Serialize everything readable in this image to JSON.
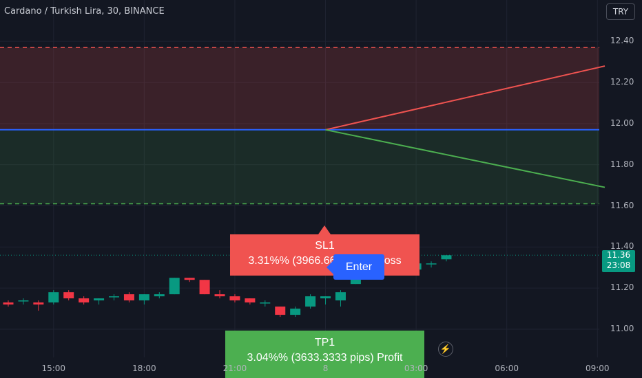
{
  "header": {
    "title": "Cardano / Turkish Lira, 30, BINANCE",
    "currency": "TRY"
  },
  "chart_data": {
    "type": "candlestick",
    "symbol": "Cardano / Turkish Lira",
    "interval": "30",
    "exchange": "BINANCE",
    "ylim": [
      10.9,
      12.5
    ],
    "y_ticks": [
      {
        "value": 11.0,
        "label": "11.00"
      },
      {
        "value": 11.2,
        "label": "11.20"
      },
      {
        "value": 11.4,
        "label": "11.40"
      },
      {
        "value": 11.6,
        "label": "11.60"
      },
      {
        "value": 11.8,
        "label": "11.80"
      },
      {
        "value": 12.0,
        "label": "12.00"
      },
      {
        "value": 12.2,
        "label": "12.20"
      },
      {
        "value": 12.4,
        "label": "12.40"
      }
    ],
    "x_ticks": [
      {
        "index": 3,
        "label": "15:00"
      },
      {
        "index": 9,
        "label": "18:00"
      },
      {
        "index": 15,
        "label": "21:00"
      },
      {
        "index": 21,
        "label": "8"
      },
      {
        "index": 27,
        "label": "03:00"
      },
      {
        "index": 33,
        "label": "06:00"
      },
      {
        "index": 39,
        "label": "09:00"
      }
    ],
    "candles": [
      {
        "o": 11.13,
        "h": 11.14,
        "l": 11.11,
        "c": 11.12
      },
      {
        "o": 11.14,
        "h": 11.15,
        "l": 11.12,
        "c": 11.14
      },
      {
        "o": 11.13,
        "h": 11.14,
        "l": 11.09,
        "c": 11.12
      },
      {
        "o": 11.13,
        "h": 11.19,
        "l": 11.12,
        "c": 11.18
      },
      {
        "o": 11.18,
        "h": 11.19,
        "l": 11.14,
        "c": 11.15
      },
      {
        "o": 11.15,
        "h": 11.16,
        "l": 11.12,
        "c": 11.13
      },
      {
        "o": 11.14,
        "h": 11.15,
        "l": 11.12,
        "c": 11.15
      },
      {
        "o": 11.16,
        "h": 11.17,
        "l": 11.14,
        "c": 11.16
      },
      {
        "o": 11.17,
        "h": 11.18,
        "l": 11.13,
        "c": 11.14
      },
      {
        "o": 11.14,
        "h": 11.17,
        "l": 11.12,
        "c": 11.17
      },
      {
        "o": 11.16,
        "h": 11.18,
        "l": 11.15,
        "c": 11.17
      },
      {
        "o": 11.17,
        "h": 11.25,
        "l": 11.17,
        "c": 11.25
      },
      {
        "o": 11.25,
        "h": 11.25,
        "l": 11.23,
        "c": 11.24
      },
      {
        "o": 11.24,
        "h": 11.24,
        "l": 11.17,
        "c": 11.17
      },
      {
        "o": 11.17,
        "h": 11.19,
        "l": 11.15,
        "c": 11.16
      },
      {
        "o": 11.16,
        "h": 11.17,
        "l": 11.13,
        "c": 11.14
      },
      {
        "o": 11.15,
        "h": 11.15,
        "l": 11.12,
        "c": 11.13
      },
      {
        "o": 11.13,
        "h": 11.14,
        "l": 11.11,
        "c": 11.13
      },
      {
        "o": 11.11,
        "h": 11.11,
        "l": 11.06,
        "c": 11.07
      },
      {
        "o": 11.07,
        "h": 11.11,
        "l": 11.06,
        "c": 11.1
      },
      {
        "o": 11.11,
        "h": 11.17,
        "l": 11.1,
        "c": 11.16
      },
      {
        "o": 11.15,
        "h": 11.16,
        "l": 11.12,
        "c": 11.16
      },
      {
        "o": 11.14,
        "h": 11.19,
        "l": 11.11,
        "c": 11.18
      },
      {
        "o": 11.22,
        "h": 11.26,
        "l": 11.22,
        "c": 11.26
      },
      {
        "o": 11.3,
        "h": 11.3,
        "l": 11.28,
        "c": 11.29
      },
      {
        "o": 11.3,
        "h": 11.31,
        "l": 11.28,
        "c": 11.3
      },
      {
        "o": 11.3,
        "h": 11.31,
        "l": 11.28,
        "c": 11.3
      },
      {
        "o": 11.29,
        "h": 11.33,
        "l": 11.28,
        "c": 11.32
      },
      {
        "o": 11.32,
        "h": 11.33,
        "l": 11.3,
        "c": 11.32
      },
      {
        "o": 11.34,
        "h": 11.36,
        "l": 11.33,
        "c": 11.36
      }
    ],
    "current_price": {
      "value": 11.36,
      "label": "11.36",
      "countdown": "23:08"
    },
    "position": {
      "entry": 11.97,
      "stop": 12.37,
      "target": 11.61,
      "entry_index": 21,
      "end_index": 40,
      "stop_path_end": 12.28,
      "target_path_end": 11.69,
      "sl_title": "SL1",
      "sl_text": "3.31%% (3966.6666 pips) Loss",
      "tp_title": "TP1",
      "tp_text": "3.04%% (3633.3333 pips) Profit",
      "enter_label": "Enter"
    },
    "colors": {
      "up": "#089981",
      "down": "#f23645",
      "stop_zone": "#f05350",
      "target_zone": "#4caf50",
      "entry_line": "#2962ff",
      "background": "#131722"
    }
  }
}
